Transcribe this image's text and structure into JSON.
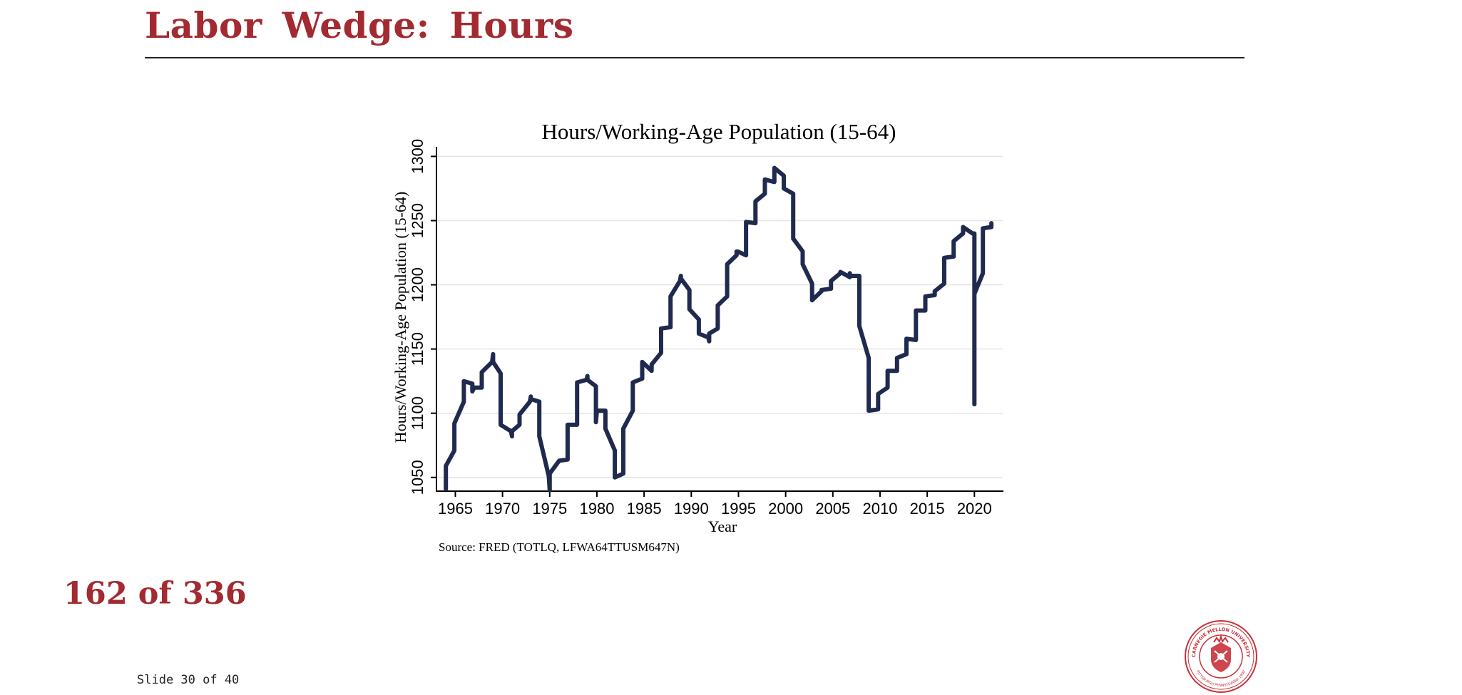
{
  "slide": {
    "title": "Labor Wedge:  Hours",
    "page_count": "162 of 336",
    "footer": "Slide 30 of 40",
    "accent_color": "#a32a30",
    "seal_text_top": "CARNEGIE MELLON UNIVERSITY",
    "seal_text_bottom": "PITTSBURGH PENNSYLVANIA 1900"
  },
  "chart_data": {
    "type": "line",
    "title": "Hours/Working-Age Population (15-64)",
    "xlabel": "Year",
    "ylabel": "Hours/Working-Age Population (15-64)",
    "source": "Source: FRED (TOTLQ, LFWA64TTUSM647N)",
    "xlim": [
      1963,
      2023
    ],
    "ylim": [
      1041,
      1308
    ],
    "xticks": [
      1965,
      1970,
      1975,
      1980,
      1985,
      1990,
      1995,
      2000,
      2005,
      2010,
      2015,
      2020
    ],
    "yticks": [
      1050,
      1100,
      1150,
      1200,
      1250,
      1300
    ],
    "grid": true,
    "line_color": "#1f2a4e",
    "series": [
      {
        "name": "",
        "points": [
          [
            1964.0,
            1041
          ],
          [
            1964.0,
            1059
          ],
          [
            1964.9,
            1071
          ],
          [
            1964.9,
            1092
          ],
          [
            1965.9,
            1109
          ],
          [
            1965.9,
            1125
          ],
          [
            1966.8,
            1123
          ],
          [
            1966.8,
            1117
          ],
          [
            1967.0,
            1120
          ],
          [
            1967.8,
            1120
          ],
          [
            1967.8,
            1132
          ],
          [
            1968.9,
            1140
          ],
          [
            1969.0,
            1146
          ],
          [
            1969.0,
            1140
          ],
          [
            1969.8,
            1131
          ],
          [
            1969.8,
            1091
          ],
          [
            1970.9,
            1086
          ],
          [
            1971.0,
            1082
          ],
          [
            1971.0,
            1086
          ],
          [
            1971.8,
            1091
          ],
          [
            1971.8,
            1099
          ],
          [
            1972.9,
            1109
          ],
          [
            1973.0,
            1113
          ],
          [
            1973.0,
            1111
          ],
          [
            1973.9,
            1109
          ],
          [
            1973.9,
            1082
          ],
          [
            1974.9,
            1051
          ],
          [
            1975.0,
            1040
          ],
          [
            1975.0,
            1053
          ],
          [
            1975.9,
            1062
          ],
          [
            1975.9,
            1062
          ],
          [
            1976.0,
            1063
          ],
          [
            1976.9,
            1064
          ],
          [
            1976.9,
            1091
          ],
          [
            1977.9,
            1091
          ],
          [
            1977.9,
            1124
          ],
          [
            1978.9,
            1126
          ],
          [
            1979.0,
            1129
          ],
          [
            1979.0,
            1126
          ],
          [
            1979.9,
            1121
          ],
          [
            1979.9,
            1093
          ],
          [
            1980.0,
            1102
          ],
          [
            1980.9,
            1102
          ],
          [
            1980.9,
            1088
          ],
          [
            1981.9,
            1071
          ],
          [
            1981.9,
            1050
          ],
          [
            1982.8,
            1053
          ],
          [
            1982.8,
            1088
          ],
          [
            1983.8,
            1102
          ],
          [
            1983.8,
            1124
          ],
          [
            1984.8,
            1127
          ],
          [
            1984.8,
            1140
          ],
          [
            1985.8,
            1133
          ],
          [
            1985.8,
            1138
          ],
          [
            1986.8,
            1147
          ],
          [
            1986.8,
            1166
          ],
          [
            1987.8,
            1167
          ],
          [
            1987.8,
            1191
          ],
          [
            1988.8,
            1203
          ],
          [
            1988.9,
            1207
          ],
          [
            1988.9,
            1205
          ],
          [
            1989.8,
            1196
          ],
          [
            1989.8,
            1181
          ],
          [
            1990.8,
            1173
          ],
          [
            1990.8,
            1162
          ],
          [
            1991.8,
            1159
          ],
          [
            1991.9,
            1156
          ],
          [
            1991.9,
            1162
          ],
          [
            1992.8,
            1166
          ],
          [
            1992.8,
            1184
          ],
          [
            1993.8,
            1191
          ],
          [
            1993.8,
            1216
          ],
          [
            1994.8,
            1223
          ],
          [
            1994.8,
            1226
          ],
          [
            1994.9,
            1226
          ],
          [
            1995.8,
            1223
          ],
          [
            1995.8,
            1249
          ],
          [
            1996.8,
            1248
          ],
          [
            1996.8,
            1265
          ],
          [
            1997.8,
            1271
          ],
          [
            1997.8,
            1282
          ],
          [
            1998.8,
            1280
          ],
          [
            1998.8,
            1291
          ],
          [
            1999.8,
            1285
          ],
          [
            1999.8,
            1275
          ],
          [
            2000.8,
            1271
          ],
          [
            2000.8,
            1236
          ],
          [
            2001.8,
            1226
          ],
          [
            2001.8,
            1216
          ],
          [
            2002.8,
            1201
          ],
          [
            2002.8,
            1188
          ],
          [
            2003.8,
            1195
          ],
          [
            2003.8,
            1196
          ],
          [
            2004.8,
            1197
          ],
          [
            2004.8,
            1203
          ],
          [
            2005.8,
            1209
          ],
          [
            2005.8,
            1210
          ],
          [
            2006.8,
            1206
          ],
          [
            2006.8,
            1209
          ],
          [
            2006.8,
            1207
          ],
          [
            2007.8,
            1207
          ],
          [
            2007.8,
            1168
          ],
          [
            2008.8,
            1143
          ],
          [
            2008.8,
            1102
          ],
          [
            2009.8,
            1103
          ],
          [
            2009.8,
            1115
          ],
          [
            2010.8,
            1120
          ],
          [
            2010.8,
            1133
          ],
          [
            2011.8,
            1133
          ],
          [
            2011.8,
            1143
          ],
          [
            2012.8,
            1146
          ],
          [
            2012.8,
            1158
          ],
          [
            2013.8,
            1157
          ],
          [
            2013.8,
            1180
          ],
          [
            2014.8,
            1180
          ],
          [
            2014.8,
            1191
          ],
          [
            2015.8,
            1192
          ],
          [
            2015.8,
            1195
          ],
          [
            2016.8,
            1201
          ],
          [
            2016.8,
            1221
          ],
          [
            2017.8,
            1222
          ],
          [
            2017.8,
            1234
          ],
          [
            2018.8,
            1240
          ],
          [
            2018.8,
            1245
          ],
          [
            2019.8,
            1240
          ],
          [
            2020.0,
            1240
          ],
          [
            2020.0,
            1107
          ],
          [
            2020.0,
            1193
          ],
          [
            2020.9,
            1209
          ],
          [
            2020.9,
            1244
          ],
          [
            2021.8,
            1245
          ],
          [
            2021.8,
            1248
          ]
        ]
      }
    ]
  }
}
